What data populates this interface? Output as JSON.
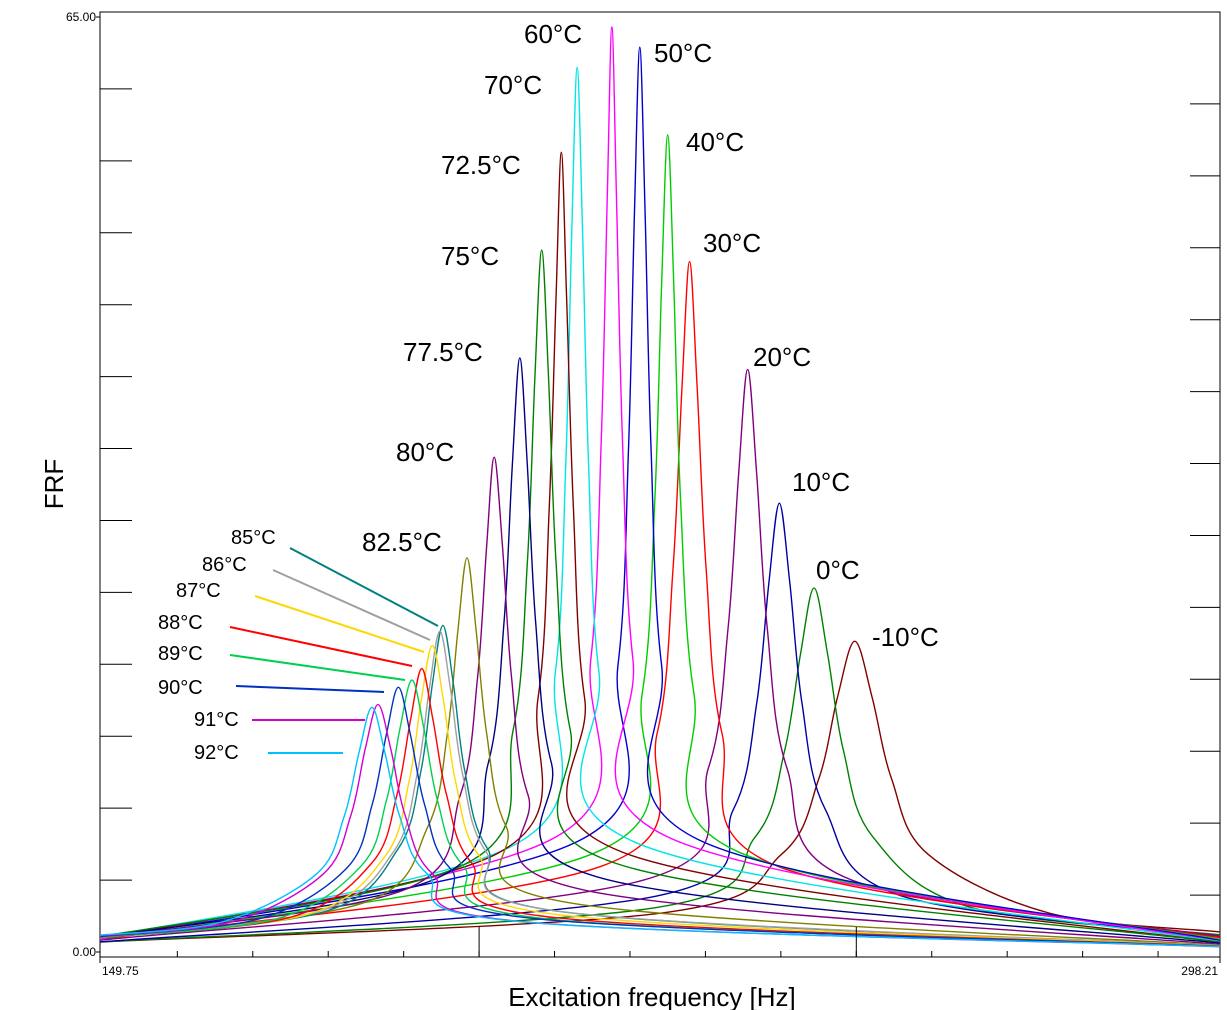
{
  "chart_data": {
    "type": "line",
    "y_label": "FRF",
    "x_label": "Excitation frequency [Hz]",
    "xlim": [
      149.75,
      298.21
    ],
    "ylim": [
      0,
      65
    ],
    "xticks": [
      149.75,
      298.21
    ],
    "yticks": [
      {
        "value": 0,
        "label": "0.00"
      },
      {
        "value": 65,
        "label": "65.00"
      }
    ],
    "minor_xticks": [
      160,
      170,
      180,
      190,
      200,
      210,
      220,
      230,
      240,
      250,
      260,
      270,
      280,
      290
    ],
    "long_xticks": [
      200,
      250
    ],
    "minor_yticks": [
      5,
      10,
      15,
      20,
      25,
      30,
      35,
      40,
      45,
      50,
      55,
      60
    ],
    "grid": false,
    "series": [
      {
        "name": "-10°C",
        "color": "#800000",
        "x": [
          149.75,
          224.0,
          240.1,
          245.0,
          247.5,
          249.8,
          252.1,
          254.7,
          259.5,
          275.6,
          298.21
        ],
        "values": [
          0.7,
          2.7,
          6.8,
          12.0,
          17.7,
          21.6,
          17.7,
          12.0,
          6.8,
          2.7,
          1.4
        ]
      },
      {
        "name": "0°C",
        "color": "#008000",
        "x": [
          149.75,
          223.6,
          236.6,
          240.5,
          242.6,
          244.4,
          246.2,
          248.3,
          252.2,
          265.2,
          298.21
        ],
        "values": [
          0.69,
          3.1,
          8.0,
          14.0,
          20.7,
          25.3,
          20.7,
          14.0,
          8.0,
          3.1,
          1.2
        ]
      },
      {
        "name": "10°C",
        "color": "#0000a0",
        "x": [
          149.75,
          223.6,
          233.7,
          236.8,
          238.4,
          239.8,
          241.2,
          242.8,
          245.9,
          256.0,
          298.21
        ],
        "values": [
          0.7,
          3.9,
          9.9,
          17.3,
          25.6,
          31.2,
          25.6,
          17.3,
          9.9,
          3.9,
          1.1
        ]
      },
      {
        "name": "20°C",
        "color": "#800080",
        "x": [
          149.75,
          221.8,
          230.4,
          233.0,
          234.4,
          235.6,
          236.8,
          238.2,
          240.8,
          249.4,
          298.21
        ],
        "values": [
          0.82,
          5.0,
          12.8,
          22.5,
          33.2,
          40.5,
          33.2,
          22.5,
          12.8,
          5.0,
          1.1
        ]
      },
      {
        "name": "30°C",
        "color": "#ff0000",
        "x": [
          149.75,
          216.4,
          223.6,
          225.7,
          226.9,
          227.9,
          228.9,
          230.1,
          232.2,
          239.4,
          298.21
        ],
        "values": [
          0.88,
          6.0,
          15.2,
          26.6,
          39.3,
          48.0,
          39.3,
          26.6,
          15.2,
          6.0,
          1.0
        ]
      },
      {
        "name": "40°C",
        "color": "#00cc00",
        "x": [
          149.75,
          215.8,
          221.6,
          223.3,
          224.2,
          225.0,
          225.8,
          226.7,
          228.5,
          234.2,
          298.21
        ],
        "values": [
          0.87,
          7.0,
          17.9,
          31.5,
          46.5,
          56.8,
          46.5,
          31.5,
          17.9,
          7.0,
          0.89
        ]
      },
      {
        "name": "50°C",
        "color": "#0000cc",
        "x": [
          149.75,
          213.5,
          218.4,
          219.8,
          220.6,
          221.3,
          222.0,
          222.8,
          224.2,
          229.1,
          298.21
        ],
        "values": [
          0.86,
          7.8,
          19.9,
          34.9,
          51.5,
          62.9,
          51.5,
          34.9,
          19.9,
          7.8,
          0.8
        ]
      },
      {
        "name": "60°C",
        "color": "#ff00ff",
        "x": [
          149.75,
          210.2,
          214.8,
          216.2,
          217.0,
          217.6,
          218.2,
          219.0,
          220.4,
          225.0,
          298.21
        ],
        "values": [
          0.87,
          8.0,
          20.3,
          35.7,
          52.7,
          64.3,
          52.7,
          35.7,
          20.3,
          8.0,
          0.73
        ]
      },
      {
        "name": "70°C",
        "color": "#00e5e5",
        "x": [
          149.75,
          205.2,
          210.1,
          211.5,
          212.3,
          213.0,
          213.7,
          214.5,
          215.9,
          220.8,
          298.21
        ],
        "values": [
          0.95,
          7.6,
          19.4,
          34.1,
          50.4,
          61.5,
          50.4,
          34.1,
          19.4,
          7.6,
          0.71
        ]
      },
      {
        "name": "72.5°C",
        "color": "#800000",
        "x": [
          149.75,
          202.6,
          207.8,
          209.3,
          210.2,
          210.9,
          211.6,
          212.5,
          214.0,
          219.2,
          298.21
        ],
        "values": [
          0.95,
          6.9,
          17.6,
          30.9,
          45.5,
          55.6,
          45.5,
          30.9,
          17.6,
          6.9,
          0.66
        ]
      },
      {
        "name": "75°C",
        "color": "#008000",
        "x": [
          149.75,
          198.1,
          204.5,
          206.4,
          207.4,
          208.3,
          209.2,
          210.2,
          212.1,
          218.5,
          298.21
        ],
        "values": [
          1.06,
          6.1,
          15.4,
          27.1,
          40.0,
          48.8,
          40.0,
          27.1,
          15.4,
          6.1,
          0.69
        ]
      },
      {
        "name": "77.5°C",
        "color": "#000080",
        "x": [
          149.75,
          194.3,
          201.2,
          203.3,
          204.4,
          205.4,
          206.4,
          207.5,
          209.6,
          216.5,
          298.21
        ],
        "values": [
          1.03,
          5.1,
          13.1,
          22.9,
          33.8,
          41.3,
          33.8,
          22.9,
          13.1,
          5.1,
          0.62
        ]
      },
      {
        "name": "80°C",
        "color": "#800080",
        "x": [
          149.75,
          190.0,
          197.5,
          199.8,
          201.0,
          202.0,
          203.1,
          204.3,
          206.5,
          214.0,
          298.21
        ],
        "values": [
          0.99,
          4.3,
          10.9,
          19.1,
          28.2,
          34.4,
          28.2,
          19.1,
          10.9,
          4.3,
          0.54
        ]
      },
      {
        "name": "82.5°C",
        "color": "#808000",
        "x": [
          149.75,
          184.6,
          193.2,
          195.8,
          197.2,
          198.4,
          199.6,
          201.0,
          203.6,
          212.2,
          298.21
        ],
        "values": [
          0.97,
          3.4,
          8.7,
          15.2,
          22.4,
          27.4,
          22.4,
          15.2,
          8.7,
          3.4,
          0.47
        ]
      },
      {
        "name": "85°C",
        "color": "#008080",
        "x": [
          149.75,
          179.5,
          189.3,
          192.3,
          193.8,
          195.2,
          196.6,
          198.1,
          201.1,
          210.9,
          298.21
        ],
        "values": [
          0.98,
          2.8,
          7.2,
          12.6,
          18.6,
          22.7,
          18.6,
          12.6,
          7.2,
          2.8,
          0.43
        ]
      },
      {
        "name": "86°C",
        "color": "#a0a0a0",
        "x": [
          149.75,
          178.6,
          188.7,
          191.8,
          193.4,
          194.8,
          196.2,
          197.8,
          200.9,
          211.0,
          298.21
        ],
        "values": [
          1.0,
          2.8,
          7.0,
          12.4,
          18.3,
          22.3,
          18.3,
          12.4,
          7.0,
          2.8,
          0.44
        ]
      },
      {
        "name": "87°C",
        "color": "#ffd700",
        "x": [
          149.75,
          177.2,
          187.6,
          190.7,
          192.3,
          193.8,
          195.3,
          196.9,
          200.0,
          210.4,
          298.21
        ],
        "values": [
          1.0,
          2.6,
          6.7,
          11.8,
          17.4,
          21.3,
          17.4,
          11.8,
          6.7,
          2.6,
          0.42
        ]
      },
      {
        "name": "88°C",
        "color": "#ff0000",
        "x": [
          149.75,
          174.9,
          185.8,
          189.1,
          190.9,
          192.4,
          193.9,
          195.7,
          199.0,
          209.9,
          298.21
        ],
        "values": [
          1.01,
          2.4,
          6.2,
          10.9,
          16.1,
          19.7,
          16.1,
          10.9,
          6.2,
          2.4,
          0.41
        ]
      },
      {
        "name": "89°C",
        "color": "#00d050",
        "x": [
          149.75,
          173.1,
          184.4,
          187.7,
          189.5,
          191.1,
          192.7,
          194.5,
          197.9,
          209.1,
          298.21
        ],
        "values": [
          1.03,
          2.3,
          6.0,
          10.5,
          15.5,
          18.9,
          15.5,
          10.5,
          6.0,
          2.3,
          0.4
        ]
      },
      {
        "name": "90°C",
        "color": "#0030c0",
        "x": [
          149.75,
          170.8,
          182.4,
          185.8,
          187.7,
          189.3,
          190.9,
          192.8,
          196.2,
          207.8,
          298.21
        ],
        "values": [
          1.07,
          2.3,
          5.8,
          10.2,
          15.1,
          18.4,
          15.1,
          10.2,
          5.8,
          2.3,
          0.39
        ]
      },
      {
        "name": "91°C",
        "color": "#d000d0",
        "x": [
          149.75,
          167.2,
          179.3,
          183.0,
          184.9,
          186.6,
          188.3,
          190.2,
          193.9,
          206.0,
          298.21
        ],
        "values": [
          1.13,
          2.1,
          5.4,
          9.5,
          14.1,
          17.2,
          14.1,
          9.5,
          5.4,
          2.1,
          0.37
        ]
      },
      {
        "name": "92°C",
        "color": "#00c0ff",
        "x": [
          149.75,
          166.0,
          178.4,
          182.1,
          184.1,
          185.8,
          187.5,
          189.5,
          193.2,
          205.6,
          298.21
        ],
        "values": [
          1.17,
          2.1,
          5.4,
          9.4,
          13.9,
          17.0,
          13.9,
          9.4,
          5.4,
          2.1,
          0.38
        ]
      }
    ]
  }
}
